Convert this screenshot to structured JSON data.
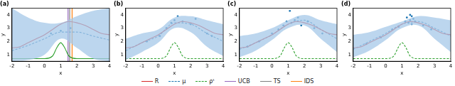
{
  "chart_data": [
    {
      "type": "line",
      "title": "(a)",
      "x_label": "x",
      "y_label": "y",
      "xlim": [
        -2,
        4
      ],
      "xticks": [
        -2,
        -1,
        0,
        1,
        2,
        3,
        4
      ],
      "ylim": [
        0.5,
        4.5
      ],
      "yticks": [
        1,
        2,
        3,
        4
      ],
      "grid": false,
      "series": [
        {
          "type": "band",
          "color": "#a6c8e8",
          "x": [
            -2,
            -1,
            0,
            1,
            2,
            3,
            4
          ],
          "lower": [
            0.5,
            0.6,
            1.0,
            2.2,
            1.5,
            0.7,
            0.5
          ],
          "upper": [
            4.5,
            3.8,
            3.4,
            3.4,
            3.9,
            4.3,
            4.5
          ]
        },
        {
          "type": "line",
          "color": "#d62728",
          "line_style": "solid",
          "x": [
            -2,
            -1.5,
            -1,
            -0.5,
            0,
            0.5,
            1,
            1.5,
            2,
            2.5,
            3,
            3.5,
            4
          ],
          "values": [
            1.5,
            1.6,
            1.9,
            2.2,
            2.5,
            2.9,
            3.3,
            3.5,
            3.4,
            3.2,
            2.9,
            2.6,
            2.5
          ]
        },
        {
          "type": "line",
          "color": "#1f77b4",
          "line_style": "dashed",
          "x": [
            -2,
            -1,
            0,
            1,
            2,
            3,
            4
          ],
          "values": [
            1.3,
            1.7,
            2.2,
            2.7,
            2.7,
            2.4,
            2.1
          ]
        },
        {
          "type": "line",
          "color": "#2ca02c",
          "line_style": "solid",
          "x": [
            -2,
            0,
            0.5,
            0.75,
            1,
            1.25,
            1.5,
            2,
            4
          ],
          "values": [
            0.7,
            0.7,
            0.9,
            1.5,
            1.9,
            1.5,
            0.9,
            0.7,
            0.7
          ]
        },
        {
          "type": "scatter",
          "color": "#1f77b4",
          "x": [
            0.4,
            1.0,
            1.6
          ],
          "values": [
            2.6,
            2.8,
            3.0
          ]
        },
        {
          "type": "vline",
          "color": "#9467bd",
          "x": [
            1.45
          ]
        },
        {
          "type": "vline",
          "color": "#7f7f7f",
          "x": [
            1.55
          ]
        },
        {
          "type": "vline",
          "color": "#ff7f0e",
          "x": [
            1.7
          ]
        }
      ]
    },
    {
      "type": "line",
      "title": "(b)",
      "x_label": "x",
      "y_label": "y",
      "xlim": [
        -2,
        4
      ],
      "xticks": [
        -2,
        -1,
        0,
        1,
        2,
        3,
        4
      ],
      "ylim": [
        0.5,
        4.5
      ],
      "yticks": [
        1,
        2,
        3,
        4
      ],
      "grid": false,
      "series": [
        {
          "type": "band",
          "color": "#a6c8e8",
          "x": [
            -2,
            -1,
            0,
            1,
            2,
            3,
            4
          ],
          "lower": [
            0.6,
            1.2,
            1.9,
            3.0,
            2.7,
            1.6,
            0.9
          ],
          "upper": [
            2.2,
            2.6,
            2.9,
            3.8,
            3.9,
            3.6,
            3.3
          ]
        },
        {
          "type": "line",
          "color": "#d62728",
          "line_style": "solid",
          "x": [
            -2,
            -1.5,
            -1,
            -0.5,
            0,
            0.5,
            1,
            1.5,
            2,
            2.5,
            3,
            3.5,
            4
          ],
          "values": [
            1.5,
            1.6,
            1.9,
            2.2,
            2.5,
            2.9,
            3.3,
            3.5,
            3.4,
            3.2,
            2.9,
            2.6,
            2.5
          ]
        },
        {
          "type": "line",
          "color": "#1f77b4",
          "line_style": "dashed",
          "x": [
            -2,
            -1,
            0,
            1,
            2,
            3,
            4
          ],
          "values": [
            1.3,
            1.9,
            2.4,
            3.4,
            3.3,
            2.6,
            2.0
          ]
        },
        {
          "type": "line",
          "color": "#2ca02c",
          "line_style": "dashed",
          "x": [
            -2,
            0,
            0.5,
            0.75,
            1,
            1.25,
            1.5,
            2,
            4
          ],
          "values": [
            0.7,
            0.7,
            0.9,
            1.5,
            1.9,
            1.5,
            0.9,
            0.7,
            0.7
          ]
        },
        {
          "type": "scatter",
          "color": "#1f77b4",
          "x": [
            -0.7,
            0.1,
            0.5,
            0.8,
            1.0,
            1.2,
            1.5,
            2.0,
            2.3,
            3.0,
            3.3
          ],
          "values": [
            2.0,
            2.4,
            3.0,
            3.4,
            3.6,
            3.9,
            3.5,
            3.3,
            3.7,
            2.6,
            2.4
          ]
        }
      ]
    },
    {
      "type": "line",
      "title": "(c)",
      "x_label": "x",
      "y_label": "y",
      "xlim": [
        -2,
        4
      ],
      "xticks": [
        -2,
        -1,
        0,
        1,
        2,
        3,
        4
      ],
      "ylim": [
        0.5,
        4.5
      ],
      "yticks": [
        1,
        2,
        3,
        4
      ],
      "grid": false,
      "series": [
        {
          "type": "band",
          "color": "#a6c8e8",
          "x": [
            -2,
            -1,
            0,
            1,
            2,
            3,
            4
          ],
          "lower": [
            0.8,
            1.3,
            2.1,
            3.0,
            3.2,
            2.2,
            1.2
          ],
          "upper": [
            2.4,
            2.6,
            3.0,
            3.6,
            4.0,
            3.6,
            3.3
          ]
        },
        {
          "type": "line",
          "color": "#d62728",
          "line_style": "solid",
          "x": [
            -2,
            -1.5,
            -1,
            -0.5,
            0,
            0.5,
            1,
            1.5,
            2,
            2.5,
            3,
            3.5,
            4
          ],
          "values": [
            1.5,
            1.6,
            1.9,
            2.2,
            2.5,
            2.9,
            3.3,
            3.5,
            3.4,
            3.2,
            2.9,
            2.6,
            2.5
          ]
        },
        {
          "type": "line",
          "color": "#1f77b4",
          "line_style": "dashed",
          "x": [
            -2,
            -1,
            0,
            1,
            2,
            3,
            4
          ],
          "values": [
            1.4,
            1.9,
            2.5,
            3.3,
            3.6,
            2.9,
            2.2
          ]
        },
        {
          "type": "line",
          "color": "#2ca02c",
          "line_style": "dashed",
          "x": [
            -2,
            0,
            0.5,
            0.75,
            1,
            1.25,
            1.5,
            2,
            4
          ],
          "values": [
            0.7,
            0.7,
            0.9,
            1.5,
            1.9,
            1.5,
            0.9,
            0.7,
            0.7
          ]
        },
        {
          "type": "scatter",
          "color": "#1f77b4",
          "x": [
            -1.5,
            -0.8,
            0,
            0.4,
            0.7,
            0.9,
            1.1,
            1.2,
            1.4,
            1.6,
            1.8,
            2.2,
            2.6,
            3.1
          ],
          "values": [
            1.6,
            2.0,
            2.6,
            2.9,
            3.2,
            3.5,
            4.3,
            3.4,
            3.6,
            3.8,
            3.2,
            3.5,
            3.0,
            2.6
          ]
        }
      ]
    },
    {
      "type": "line",
      "title": "(d)",
      "x_label": "x",
      "y_label": "y",
      "xlim": [
        -2,
        4
      ],
      "xticks": [
        -2,
        -1,
        0,
        1,
        2,
        3,
        4
      ],
      "ylim": [
        0.5,
        4.5
      ],
      "yticks": [
        1,
        2,
        3,
        4
      ],
      "grid": false,
      "series": [
        {
          "type": "band",
          "color": "#a6c8e8",
          "x": [
            -2,
            -1,
            0,
            1,
            2,
            3,
            4
          ],
          "lower": [
            0.8,
            1.3,
            2.1,
            3.0,
            3.2,
            2.2,
            1.2
          ],
          "upper": [
            2.5,
            2.7,
            3.1,
            3.5,
            3.9,
            3.8,
            3.6
          ]
        },
        {
          "type": "line",
          "color": "#d62728",
          "line_style": "solid",
          "x": [
            -2,
            -1.5,
            -1,
            -0.5,
            0,
            0.5,
            1,
            1.5,
            2,
            2.5,
            3,
            3.5,
            4
          ],
          "values": [
            1.5,
            1.6,
            1.9,
            2.2,
            2.5,
            2.9,
            3.3,
            3.5,
            3.4,
            3.2,
            2.9,
            2.6,
            2.5
          ]
        },
        {
          "type": "line",
          "color": "#1f77b4",
          "line_style": "dashed",
          "x": [
            -2,
            -1,
            0,
            1,
            2,
            3,
            4
          ],
          "values": [
            1.4,
            2.0,
            2.6,
            3.3,
            3.5,
            3.0,
            2.4
          ]
        },
        {
          "type": "line",
          "color": "#2ca02c",
          "line_style": "dashed",
          "x": [
            -2,
            0,
            0.5,
            0.75,
            1,
            1.25,
            1.5,
            2,
            4
          ],
          "values": [
            0.7,
            0.7,
            0.9,
            1.5,
            1.9,
            1.5,
            0.9,
            0.7,
            0.7
          ]
        },
        {
          "type": "scatter",
          "color": "#1f77b4",
          "x": [
            -1.2,
            -0.3,
            0.4,
            0.8,
            1.2,
            1.3,
            1.4,
            1.5,
            1.5,
            1.6,
            1.6,
            1.7,
            1.8,
            2.3,
            2.8
          ],
          "values": [
            1.8,
            2.3,
            2.9,
            3.1,
            3.5,
            3.8,
            3.4,
            4.0,
            3.6,
            3.9,
            3.3,
            3.7,
            3.5,
            3.2,
            2.9
          ]
        }
      ]
    }
  ],
  "legend": {
    "position": "bottom",
    "entries": [
      {
        "name": "R",
        "color": "#d62728",
        "line_style": "solid"
      },
      {
        "name": "μ",
        "color": "#1f77b4",
        "line_style": "dashed"
      },
      {
        "name": "ρᵗ",
        "color": "#2ca02c",
        "line_style": "dashed"
      },
      {
        "name": "UCB",
        "color": "#9467bd",
        "line_style": "solid"
      },
      {
        "name": "TS",
        "color": "#7f7f7f",
        "line_style": "solid"
      },
      {
        "name": "IDS",
        "color": "#ff7f0e",
        "line_style": "solid"
      }
    ]
  }
}
